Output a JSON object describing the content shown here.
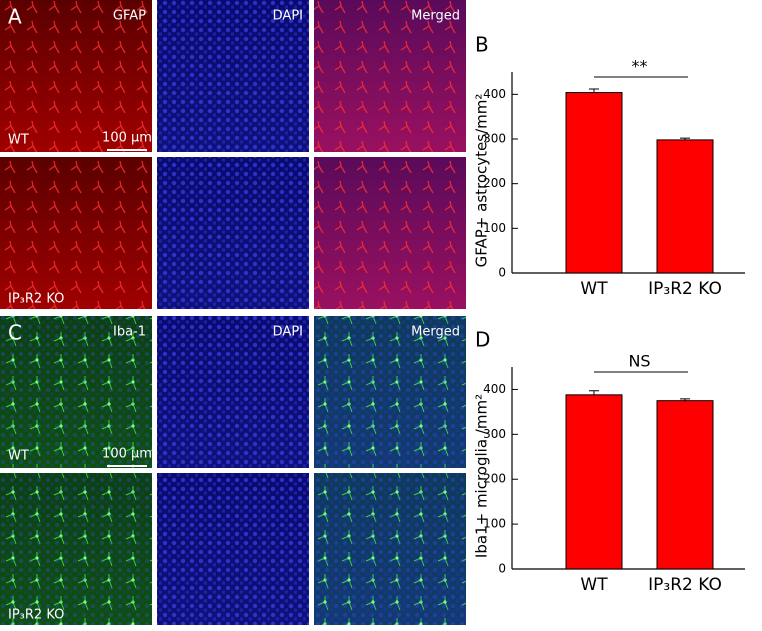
{
  "images": {
    "top": {
      "panel": "A",
      "columns": [
        "GFAP",
        "DAPI",
        "Merged"
      ],
      "rows": [
        "WT",
        "IP₃R2 KO"
      ],
      "scale_bar": "100 µm"
    },
    "bottom": {
      "panel": "C",
      "columns": [
        "Iba-1",
        "DAPI",
        "Merged"
      ],
      "rows": [
        "WT",
        "IP₃R2 KO"
      ],
      "scale_bar": "100 µm"
    }
  },
  "chart_data": [
    {
      "type": "bar",
      "panel": "B",
      "y_label": "GFAP+ astrocytes/mm²",
      "categories": [
        "WT",
        "IP₃R2 KO"
      ],
      "values": [
        404,
        298
      ],
      "errors": [
        8,
        4
      ],
      "color": "#ff0000",
      "ylim": [
        0,
        450
      ],
      "yticks": [
        0,
        100,
        200,
        300,
        400
      ],
      "annotation": "**"
    },
    {
      "type": "bar",
      "panel": "D",
      "y_label": "Iba1+ microglia /mm²",
      "categories": [
        "WT",
        "IP₃R2 KO"
      ],
      "values": [
        388,
        375
      ],
      "errors": [
        9,
        4
      ],
      "color": "#ff0000",
      "ylim": [
        0,
        450
      ],
      "yticks": [
        0,
        100,
        200,
        300,
        400
      ],
      "annotation": "NS"
    }
  ]
}
